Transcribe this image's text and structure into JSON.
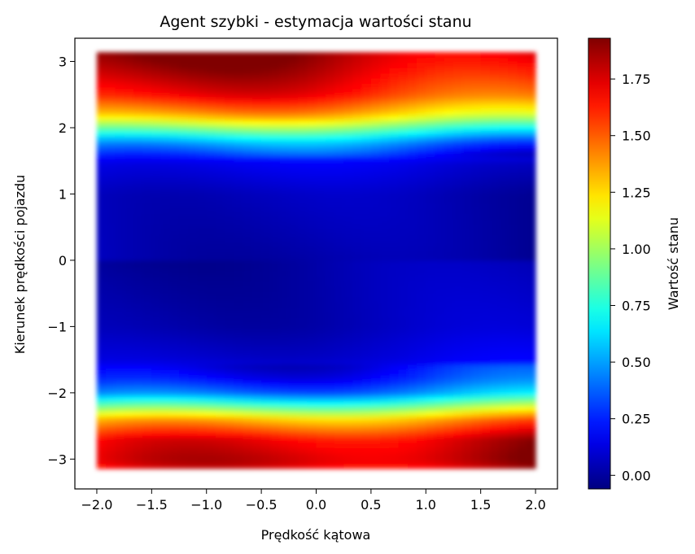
{
  "chart_data": {
    "type": "heatmap",
    "plot_style": "hexbin",
    "title": "Agent szybki - estymacja wartości stanu",
    "xlabel": "Prędkość kątowa",
    "ylabel": "Kierunek prędkości pojazdu",
    "colorbar_label": "Wartość stanu",
    "colormap": "jet",
    "xlim": [
      -2.2,
      2.2
    ],
    "ylim": [
      -3.45,
      3.35
    ],
    "x_ticks": [
      -2.0,
      -1.5,
      -1.0,
      -0.5,
      0.0,
      0.5,
      1.0,
      1.5,
      2.0
    ],
    "x_tick_labels": [
      "−2.0",
      "−1.5",
      "−1.0",
      "−0.5",
      "0.0",
      "0.5",
      "1.0",
      "1.5",
      "2.0"
    ],
    "y_ticks": [
      -3,
      -2,
      -1,
      0,
      1,
      2,
      3
    ],
    "y_tick_labels": [
      "−3",
      "−2",
      "−1",
      "0",
      "1",
      "2",
      "3"
    ],
    "colorbar_range": [
      -0.06,
      1.93
    ],
    "colorbar_ticks": [
      0.0,
      0.25,
      0.5,
      0.75,
      1.0,
      1.25,
      1.5,
      1.75
    ],
    "colorbar_tick_labels": [
      "0.00",
      "0.25",
      "0.50",
      "0.75",
      "1.00",
      "1.25",
      "1.50",
      "1.75"
    ],
    "data_extent": {
      "x": [
        -2.0,
        2.0
      ],
      "y": [
        -3.14,
        3.14
      ]
    },
    "value_profile_by_y": {
      "y": [
        -3.14,
        -3.0,
        -2.7,
        -2.4,
        -2.2,
        -2.0,
        -1.8,
        -1.5,
        -1.0,
        0.0,
        1.0,
        1.5,
        1.8,
        2.0,
        2.2,
        2.5,
        2.8,
        3.0,
        3.14
      ],
      "value": [
        1.72,
        1.8,
        1.72,
        1.35,
        0.9,
        0.45,
        0.25,
        0.12,
        0.05,
        0.02,
        0.05,
        0.15,
        0.5,
        0.9,
        1.3,
        1.62,
        1.75,
        1.82,
        1.85
      ]
    }
  }
}
